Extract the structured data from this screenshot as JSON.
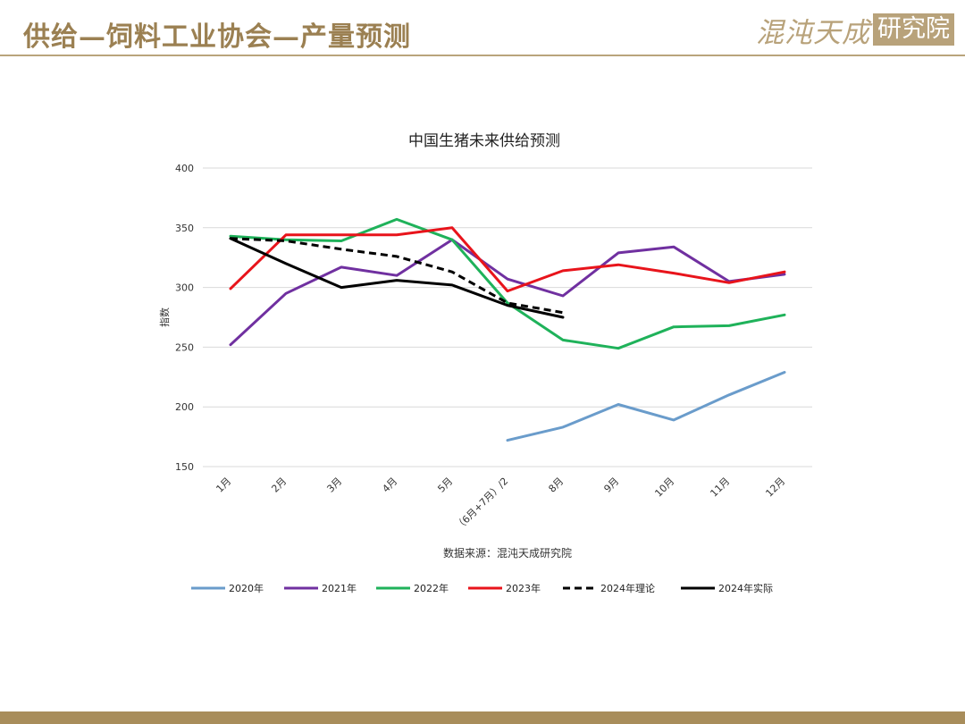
{
  "header": {
    "title": "供给—饲料工业协会—产量预测",
    "logo_main": "混沌天成",
    "logo_box": "研究院"
  },
  "source_note": "数据来源：混沌天成研究院",
  "chart_data": {
    "type": "line",
    "title": "中国生猪未来供给预测",
    "xlabel": "",
    "ylabel": "指数",
    "ylim": [
      150,
      400
    ],
    "yticks": [
      150,
      200,
      250,
      300,
      350,
      400
    ],
    "grid": true,
    "legend_position": "bottom",
    "categories": [
      "1月",
      "2月",
      "3月",
      "4月",
      "5月",
      "（6月+7月）/2",
      "8月",
      "9月",
      "10月",
      "11月",
      "12月"
    ],
    "series": [
      {
        "name": "2020年",
        "color": "#6a9ccb",
        "dashed": false,
        "values": [
          null,
          null,
          null,
          null,
          null,
          172,
          183,
          202,
          189,
          210,
          229
        ]
      },
      {
        "name": "2021年",
        "color": "#7030a0",
        "dashed": false,
        "values": [
          252,
          295,
          317,
          310,
          340,
          307,
          293,
          329,
          334,
          305,
          311
        ]
      },
      {
        "name": "2022年",
        "color": "#1fb25a",
        "dashed": false,
        "values": [
          343,
          340,
          339,
          357,
          340,
          287,
          256,
          249,
          267,
          268,
          277
        ]
      },
      {
        "name": "2023年",
        "color": "#e8141b",
        "dashed": false,
        "values": [
          299,
          344,
          344,
          344,
          350,
          297,
          314,
          319,
          312,
          304,
          313
        ]
      },
      {
        "name": "2024年理论",
        "color": "#000000",
        "dashed": true,
        "values": [
          341,
          339,
          332,
          326,
          313,
          287,
          279,
          null,
          null,
          null,
          null
        ]
      },
      {
        "name": "2024年实际",
        "color": "#000000",
        "dashed": false,
        "values": [
          341,
          320,
          300,
          306,
          302,
          285,
          275,
          null,
          null,
          null,
          null
        ]
      }
    ]
  }
}
